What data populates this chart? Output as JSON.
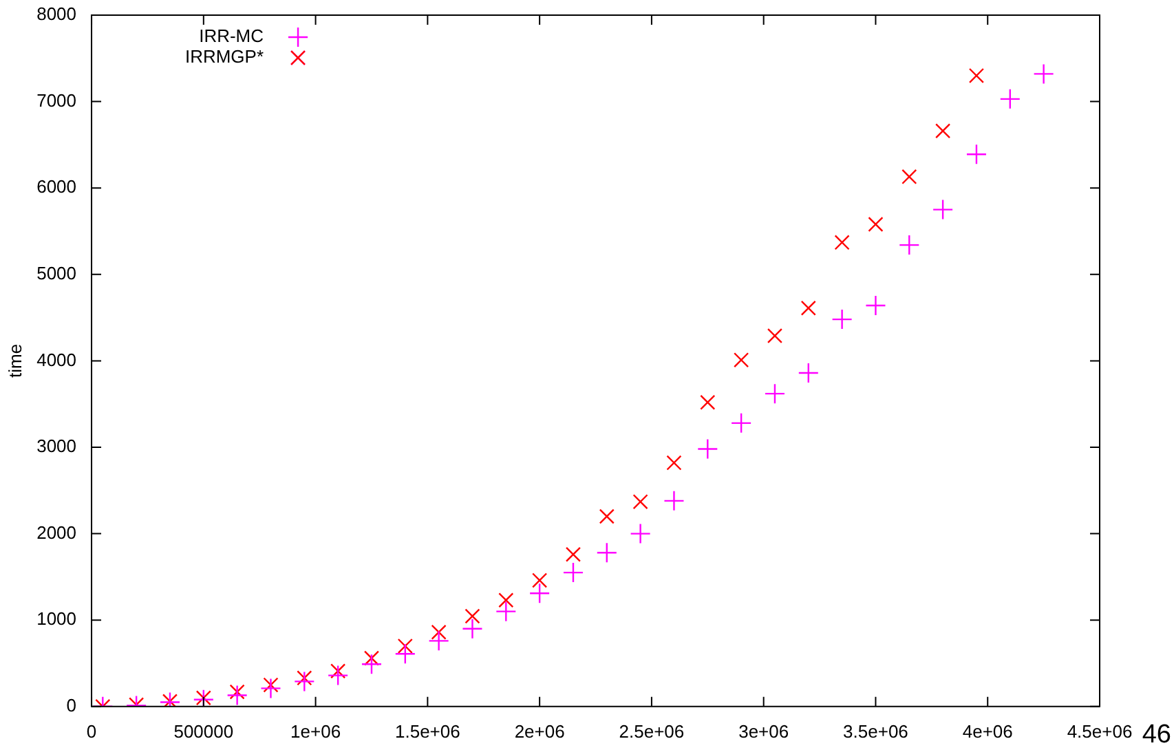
{
  "chart_data": {
    "type": "scatter",
    "ylabel": "time",
    "annotations": [
      "46"
    ],
    "xlim": [
      0,
      4500000
    ],
    "xticks": [
      0,
      500000,
      {
        "value": 1000000,
        "label": "1e+06"
      },
      {
        "value": 1500000,
        "label": "1.5e+06"
      },
      {
        "value": 2000000,
        "label": "2e+06"
      },
      {
        "value": 2500000,
        "label": "2.5e+06"
      },
      {
        "value": 3000000,
        "label": "3e+06"
      },
      {
        "value": 3500000,
        "label": "3.5e+06"
      },
      {
        "value": 4000000,
        "label": "4e+06"
      },
      {
        "value": 4500000,
        "label": "4.5e+06"
      }
    ],
    "ylim": [
      0,
      8000
    ],
    "yticks": [
      0,
      1000,
      2000,
      3000,
      4000,
      5000,
      6000,
      7000,
      8000
    ],
    "grid": false,
    "legend": "top left",
    "series": [
      {
        "name": "IRR-MC",
        "color": "#ff00ff",
        "marker": "plus",
        "x": [
          50000,
          200000,
          350000,
          500000,
          650000,
          800000,
          950000,
          1100000,
          1250000,
          1400000,
          1550000,
          1700000,
          1850000,
          2000000,
          2150000,
          2300000,
          2450000,
          2600000,
          2750000,
          2900000,
          3050000,
          3200000,
          3350000,
          3500000,
          3650000,
          3800000,
          3950000,
          4100000,
          4250000
        ],
        "values": [
          0,
          10,
          50,
          80,
          130,
          210,
          290,
          360,
          490,
          610,
          760,
          900,
          1100,
          1310,
          1550,
          1780,
          2000,
          2380,
          2980,
          3280,
          3620,
          3860,
          4480,
          4640,
          5340,
          5750,
          6390,
          7030,
          7320
        ]
      },
      {
        "name": "IRRMGP*",
        "color": "#ff0000",
        "marker": "cross",
        "x": [
          50000,
          200000,
          350000,
          500000,
          650000,
          800000,
          950000,
          1100000,
          1250000,
          1400000,
          1550000,
          1700000,
          1850000,
          2000000,
          2150000,
          2300000,
          2450000,
          2600000,
          2750000,
          2900000,
          3050000,
          3200000,
          3350000,
          3500000,
          3650000,
          3800000,
          3950000
        ],
        "values": [
          0,
          20,
          60,
          100,
          170,
          250,
          330,
          410,
          560,
          700,
          860,
          1045,
          1230,
          1460,
          1760,
          2200,
          2370,
          2820,
          3520,
          4010,
          4290,
          4610,
          5370,
          5580,
          6130,
          6660,
          7300
        ]
      }
    ]
  }
}
